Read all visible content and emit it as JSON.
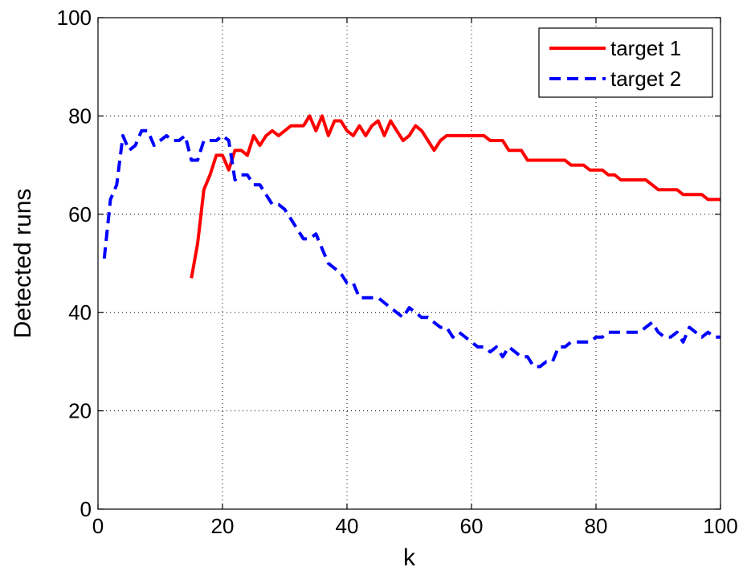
{
  "chart_data": {
    "type": "line",
    "title": "",
    "xlabel": "k",
    "ylabel": "Detected runs",
    "xlim": [
      0,
      100
    ],
    "ylim": [
      0,
      100
    ],
    "xticks": [
      0,
      20,
      40,
      60,
      80,
      100
    ],
    "yticks": [
      0,
      20,
      40,
      60,
      80,
      100
    ],
    "grid": true,
    "legend_position": "top-right",
    "series": [
      {
        "name": "target 1",
        "color": "#ff0000",
        "style": "solid",
        "x": [
          15,
          16,
          17,
          18,
          19,
          20,
          21,
          22,
          23,
          24,
          25,
          26,
          27,
          28,
          29,
          30,
          31,
          32,
          33,
          34,
          35,
          36,
          37,
          38,
          39,
          40,
          41,
          42,
          43,
          44,
          45,
          46,
          47,
          48,
          49,
          50,
          51,
          52,
          53,
          54,
          55,
          56,
          57,
          58,
          59,
          60,
          61,
          62,
          63,
          64,
          65,
          66,
          67,
          68,
          69,
          70,
          71,
          72,
          73,
          74,
          75,
          76,
          77,
          78,
          79,
          80,
          81,
          82,
          83,
          84,
          85,
          86,
          87,
          88,
          89,
          90,
          91,
          92,
          93,
          94,
          95,
          96,
          97,
          98,
          99,
          100
        ],
        "y": [
          47,
          54,
          65,
          68,
          72,
          72,
          69,
          73,
          73,
          72,
          76,
          74,
          76,
          77,
          76,
          77,
          78,
          78,
          78,
          80,
          77,
          80,
          76,
          79,
          79,
          77,
          76,
          78,
          76,
          78,
          79,
          76,
          79,
          77,
          75,
          76,
          78,
          77,
          75,
          73,
          75,
          76,
          76,
          76,
          76,
          76,
          76,
          76,
          75,
          75,
          75,
          73,
          73,
          73,
          71,
          71,
          71,
          71,
          71,
          71,
          71,
          70,
          70,
          70,
          69,
          69,
          69,
          68,
          68,
          67,
          67,
          67,
          67,
          67,
          66,
          65,
          65,
          65,
          65,
          64,
          64,
          64,
          64,
          63,
          63,
          63
        ]
      },
      {
        "name": "target 2",
        "color": "#0000ff",
        "style": "dashed",
        "x": [
          1,
          2,
          3,
          4,
          5,
          6,
          7,
          8,
          9,
          10,
          11,
          12,
          13,
          14,
          15,
          16,
          17,
          18,
          19,
          20,
          21,
          22,
          23,
          24,
          25,
          26,
          27,
          28,
          29,
          30,
          31,
          32,
          33,
          34,
          35,
          36,
          37,
          38,
          39,
          40,
          41,
          42,
          43,
          44,
          45,
          46,
          47,
          48,
          49,
          50,
          51,
          52,
          53,
          54,
          55,
          56,
          57,
          58,
          59,
          60,
          61,
          62,
          63,
          64,
          65,
          66,
          67,
          68,
          69,
          70,
          71,
          72,
          73,
          74,
          75,
          76,
          77,
          78,
          79,
          80,
          81,
          82,
          83,
          84,
          85,
          86,
          87,
          88,
          89,
          90,
          91,
          92,
          93,
          94,
          95,
          96,
          97,
          98,
          99,
          100
        ],
        "y": [
          51,
          63,
          66,
          76,
          73,
          74,
          77,
          77,
          74,
          75,
          76,
          75,
          75,
          76,
          71,
          71,
          75,
          75,
          75,
          76,
          75,
          67,
          68,
          68,
          66,
          66,
          64,
          62,
          62,
          61,
          59,
          57,
          55,
          55,
          56,
          53,
          50,
          49,
          48,
          46,
          46,
          43,
          43,
          43,
          43,
          42,
          41,
          40,
          39,
          41,
          40,
          39,
          39,
          38,
          37,
          37,
          35,
          36,
          35,
          34,
          33,
          33,
          32,
          33,
          31,
          33,
          32,
          31,
          31,
          29,
          29,
          30,
          30,
          33,
          33,
          34,
          34,
          34,
          34,
          35,
          35,
          36,
          36,
          36,
          36,
          36,
          36,
          37,
          38,
          36,
          35,
          35,
          36,
          34,
          37,
          36,
          35,
          36,
          35,
          35
        ]
      }
    ]
  }
}
